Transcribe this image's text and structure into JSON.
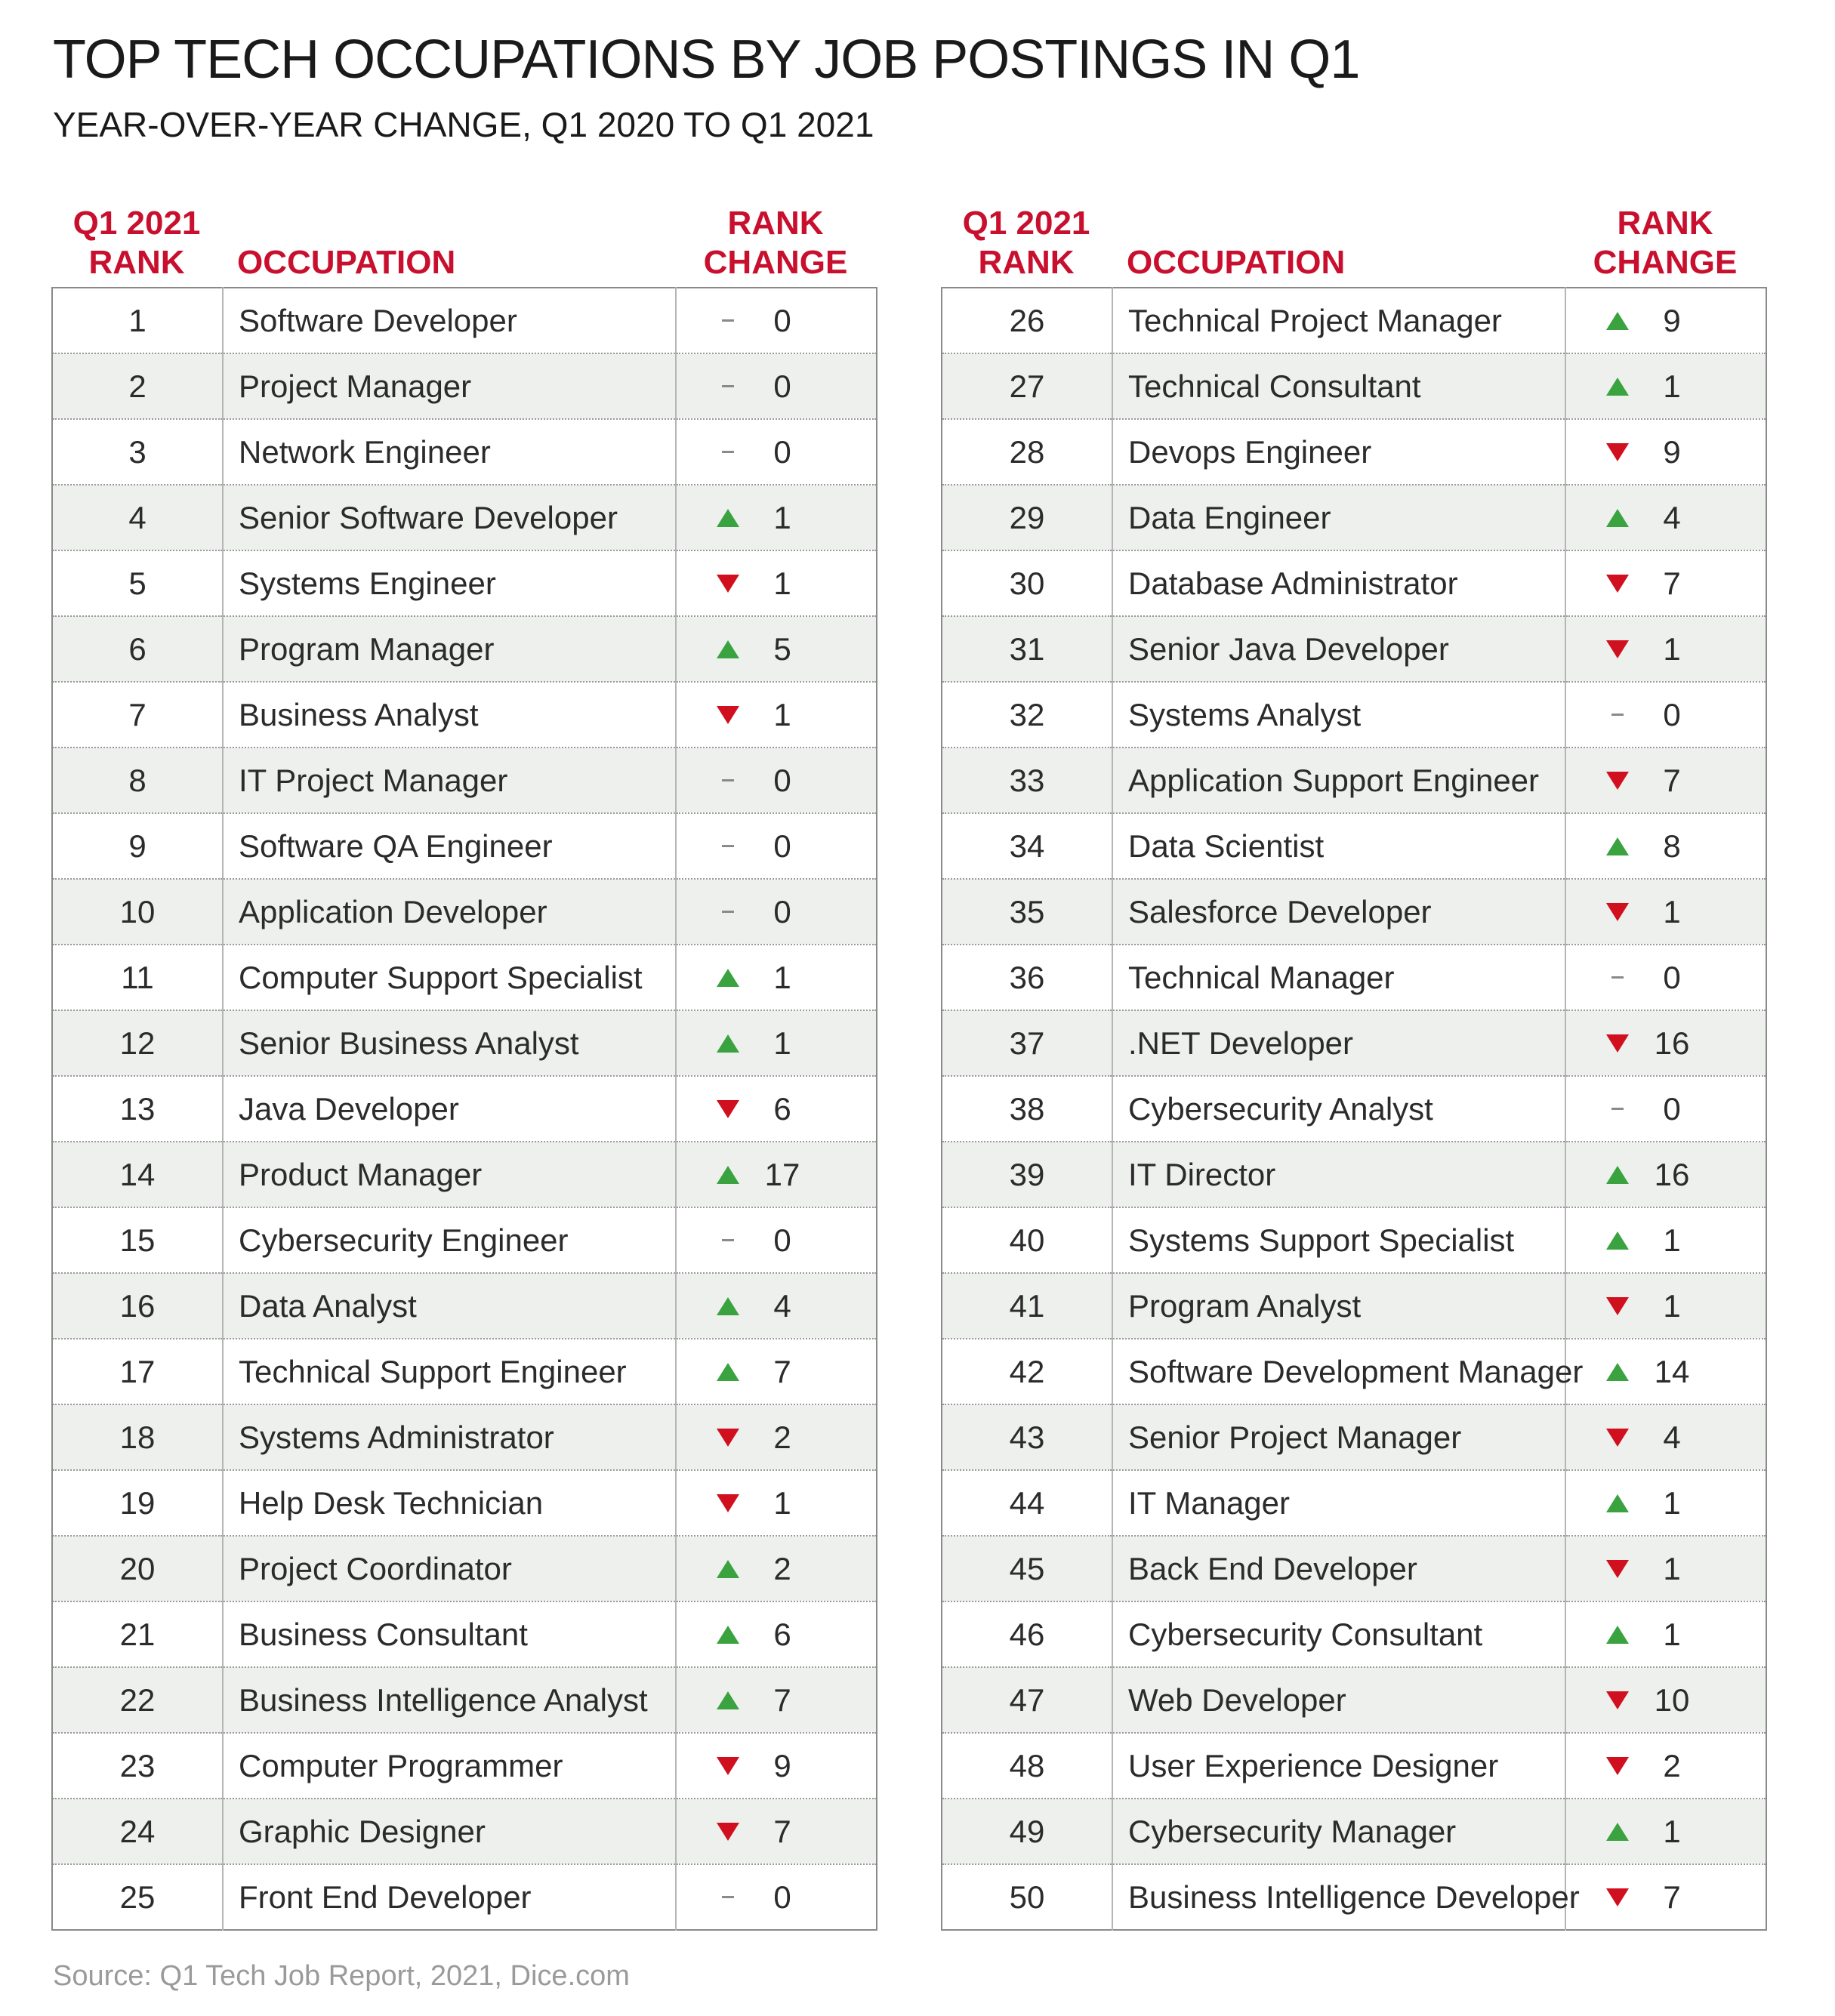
{
  "title": "TOP TECH OCCUPATIONS BY JOB POSTINGS IN Q1",
  "subtitle": "YEAR-OVER-YEAR CHANGE, Q1 2020 TO Q1 2021",
  "source": "Source: Q1 Tech Job Report, 2021, Dice.com",
  "colors": {
    "accent": "#c8102e",
    "up": "#3aa340",
    "down": "#d0101e",
    "same": "#8a8a8a"
  },
  "chart_data": {
    "type": "table",
    "columns": {
      "rank": [
        "Q1 2021",
        "RANK"
      ],
      "occupation": "OCCUPATION",
      "change": [
        "RANK",
        "CHANGE"
      ]
    },
    "rows": [
      {
        "rank": "1",
        "occupation": "Software Developer",
        "dir": "same",
        "change": "0"
      },
      {
        "rank": "2",
        "occupation": "Project Manager",
        "dir": "same",
        "change": "0"
      },
      {
        "rank": "3",
        "occupation": "Network Engineer",
        "dir": "same",
        "change": "0"
      },
      {
        "rank": "4",
        "occupation": "Senior Software Developer",
        "dir": "up",
        "change": "1"
      },
      {
        "rank": "5",
        "occupation": "Systems Engineer",
        "dir": "down",
        "change": "1"
      },
      {
        "rank": "6",
        "occupation": "Program Manager",
        "dir": "up",
        "change": "5"
      },
      {
        "rank": "7",
        "occupation": "Business Analyst",
        "dir": "down",
        "change": "1"
      },
      {
        "rank": "8",
        "occupation": "IT Project Manager",
        "dir": "same",
        "change": "0"
      },
      {
        "rank": "9",
        "occupation": "Software QA Engineer",
        "dir": "same",
        "change": "0"
      },
      {
        "rank": "10",
        "occupation": "Application Developer",
        "dir": "same",
        "change": "0"
      },
      {
        "rank": "11",
        "occupation": "Computer Support Specialist",
        "dir": "up",
        "change": "1"
      },
      {
        "rank": "12",
        "occupation": "Senior Business Analyst",
        "dir": "up",
        "change": "1"
      },
      {
        "rank": "13",
        "occupation": "Java Developer",
        "dir": "down",
        "change": "6"
      },
      {
        "rank": "14",
        "occupation": "Product Manager",
        "dir": "up",
        "change": "17"
      },
      {
        "rank": "15",
        "occupation": "Cybersecurity Engineer",
        "dir": "same",
        "change": "0"
      },
      {
        "rank": "16",
        "occupation": "Data Analyst",
        "dir": "up",
        "change": "4"
      },
      {
        "rank": "17",
        "occupation": "Technical Support Engineer",
        "dir": "up",
        "change": "7"
      },
      {
        "rank": "18",
        "occupation": "Systems Administrator",
        "dir": "down",
        "change": "2"
      },
      {
        "rank": "19",
        "occupation": "Help Desk Technician",
        "dir": "down",
        "change": "1"
      },
      {
        "rank": "20",
        "occupation": "Project Coordinator",
        "dir": "up",
        "change": "2"
      },
      {
        "rank": "21",
        "occupation": "Business Consultant",
        "dir": "up",
        "change": "6"
      },
      {
        "rank": "22",
        "occupation": "Business Intelligence Analyst",
        "dir": "up",
        "change": "7"
      },
      {
        "rank": "23",
        "occupation": "Computer Programmer",
        "dir": "down",
        "change": "9"
      },
      {
        "rank": "24",
        "occupation": "Graphic Designer",
        "dir": "down",
        "change": "7"
      },
      {
        "rank": "25",
        "occupation": "Front End Developer",
        "dir": "same",
        "change": "0"
      },
      {
        "rank": "26",
        "occupation": "Technical Project Manager",
        "dir": "up",
        "change": "9"
      },
      {
        "rank": "27",
        "occupation": "Technical Consultant",
        "dir": "up",
        "change": "1"
      },
      {
        "rank": "28",
        "occupation": "Devops Engineer",
        "dir": "down",
        "change": "9"
      },
      {
        "rank": "29",
        "occupation": "Data Engineer",
        "dir": "up",
        "change": "4"
      },
      {
        "rank": "30",
        "occupation": "Database Administrator",
        "dir": "down",
        "change": "7"
      },
      {
        "rank": "31",
        "occupation": "Senior Java Developer",
        "dir": "down",
        "change": "1"
      },
      {
        "rank": "32",
        "occupation": "Systems Analyst",
        "dir": "same",
        "change": "0"
      },
      {
        "rank": "33",
        "occupation": "Application Support Engineer",
        "dir": "down",
        "change": "7"
      },
      {
        "rank": "34",
        "occupation": "Data Scientist",
        "dir": "up",
        "change": "8"
      },
      {
        "rank": "35",
        "occupation": "Salesforce Developer",
        "dir": "down",
        "change": "1"
      },
      {
        "rank": "36",
        "occupation": "Technical Manager",
        "dir": "same",
        "change": "0"
      },
      {
        "rank": "37",
        "occupation": ".NET Developer",
        "dir": "down",
        "change": "16"
      },
      {
        "rank": "38",
        "occupation": "Cybersecurity Analyst",
        "dir": "same",
        "change": "0"
      },
      {
        "rank": "39",
        "occupation": "IT Director",
        "dir": "up",
        "change": "16"
      },
      {
        "rank": "40",
        "occupation": "Systems Support Specialist",
        "dir": "up",
        "change": "1"
      },
      {
        "rank": "41",
        "occupation": "Program Analyst",
        "dir": "down",
        "change": "1"
      },
      {
        "rank": "42",
        "occupation": "Software Development Manager",
        "dir": "up",
        "change": "14"
      },
      {
        "rank": "43",
        "occupation": "Senior Project Manager",
        "dir": "down",
        "change": "4"
      },
      {
        "rank": "44",
        "occupation": "IT Manager",
        "dir": "up",
        "change": "1"
      },
      {
        "rank": "45",
        "occupation": "Back End Developer",
        "dir": "down",
        "change": "1"
      },
      {
        "rank": "46",
        "occupation": "Cybersecurity Consultant",
        "dir": "up",
        "change": "1"
      },
      {
        "rank": "47",
        "occupation": "Web Developer",
        "dir": "down",
        "change": "10"
      },
      {
        "rank": "48",
        "occupation": "User Experience Designer",
        "dir": "down",
        "change": "2"
      },
      {
        "rank": "49",
        "occupation": "Cybersecurity Manager",
        "dir": "up",
        "change": "1"
      },
      {
        "rank": "50",
        "occupation": "Business Intelligence Developer",
        "dir": "down",
        "change": "7"
      }
    ]
  }
}
